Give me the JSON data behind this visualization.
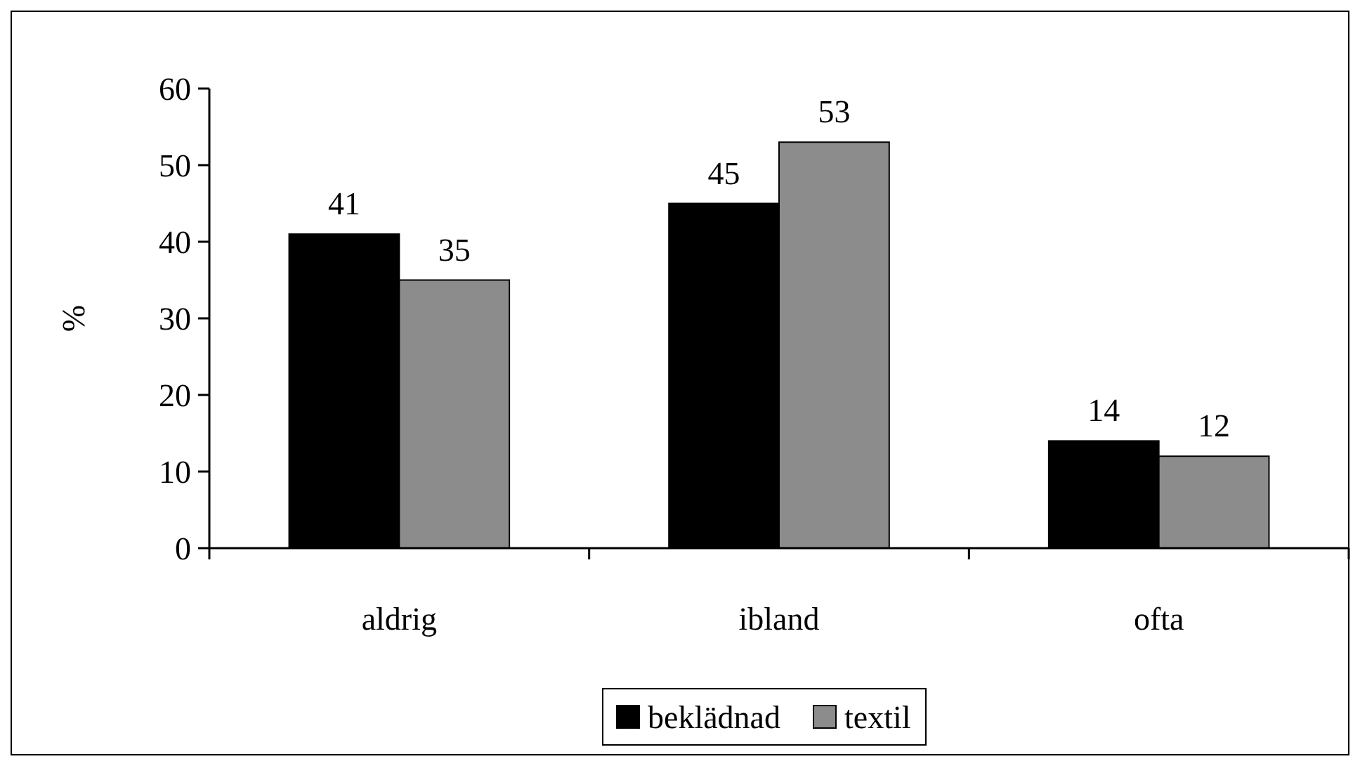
{
  "chart_data": {
    "type": "bar",
    "ylabel": "%",
    "categories": [
      "aldrig",
      "ibland",
      "ofta"
    ],
    "series": [
      {
        "name": "beklädnad",
        "color": "#000000",
        "values": [
          41,
          45,
          14
        ]
      },
      {
        "name": "textil",
        "color": "#8c8c8c",
        "values": [
          35,
          53,
          12
        ]
      }
    ],
    "ylim": [
      0,
      60
    ],
    "yticks": [
      0,
      10,
      20,
      30,
      40,
      50,
      60
    ],
    "data_labels": true,
    "legend": "bottom",
    "grid": false
  }
}
